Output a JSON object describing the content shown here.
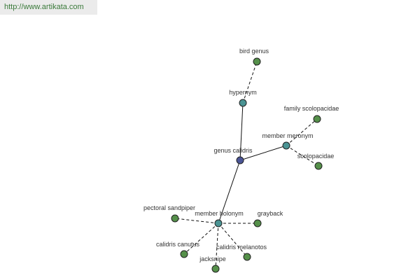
{
  "header": {
    "url": "http://www.artikata.com"
  },
  "nodes": [
    {
      "label": "genus calidris"
    },
    {
      "label": "hypernym"
    },
    {
      "label": "bird genus"
    },
    {
      "label": "member meronym"
    },
    {
      "label": "family scolopacidae"
    },
    {
      "label": "scolopacidae"
    },
    {
      "label": "member holonym"
    },
    {
      "label": "grayback"
    },
    {
      "label": "pectoral sandpiper"
    },
    {
      "label": "calidris canutus"
    },
    {
      "label": "calidris melanotos"
    },
    {
      "label": "jacksnipe"
    }
  ]
}
